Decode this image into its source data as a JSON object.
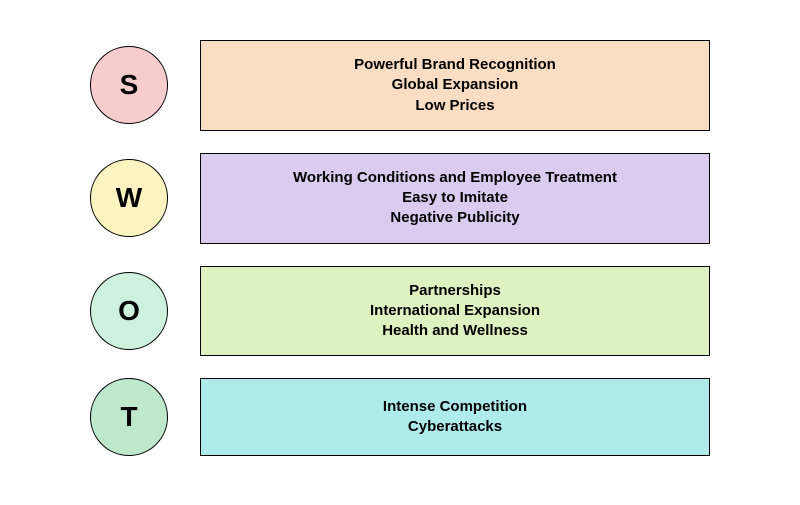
{
  "diagram": {
    "type": "infographic",
    "background_color": "#ffffff",
    "border_color": "#000000",
    "text_color": "#000000",
    "letter_fontsize": 28,
    "item_fontsize": 15,
    "item_fontweight": "bold",
    "circle_diameter": 78,
    "row_gap": 22,
    "rows": [
      {
        "letter": "S",
        "circle_fill": "#f7cccc",
        "box_fill": "#fbddc3",
        "items": [
          "Powerful Brand Recognition",
          "Global Expansion",
          "Low Prices"
        ]
      },
      {
        "letter": "W",
        "circle_fill": "#fbf4c1",
        "box_fill": "#dbcbef",
        "items": [
          "Working Conditions and Employee Treatment",
          "Easy to Imitate",
          "Negative Publicity"
        ]
      },
      {
        "letter": "O",
        "circle_fill": "#ccf1dd",
        "box_fill": "#ddf1c1",
        "items": [
          "Partnerships",
          "International Expansion",
          "Health and Wellness"
        ]
      },
      {
        "letter": "T",
        "circle_fill": "#bde8cc",
        "box_fill": "#aeebeb",
        "items": [
          "Intense Competition",
          "Cyberattacks"
        ]
      }
    ]
  }
}
